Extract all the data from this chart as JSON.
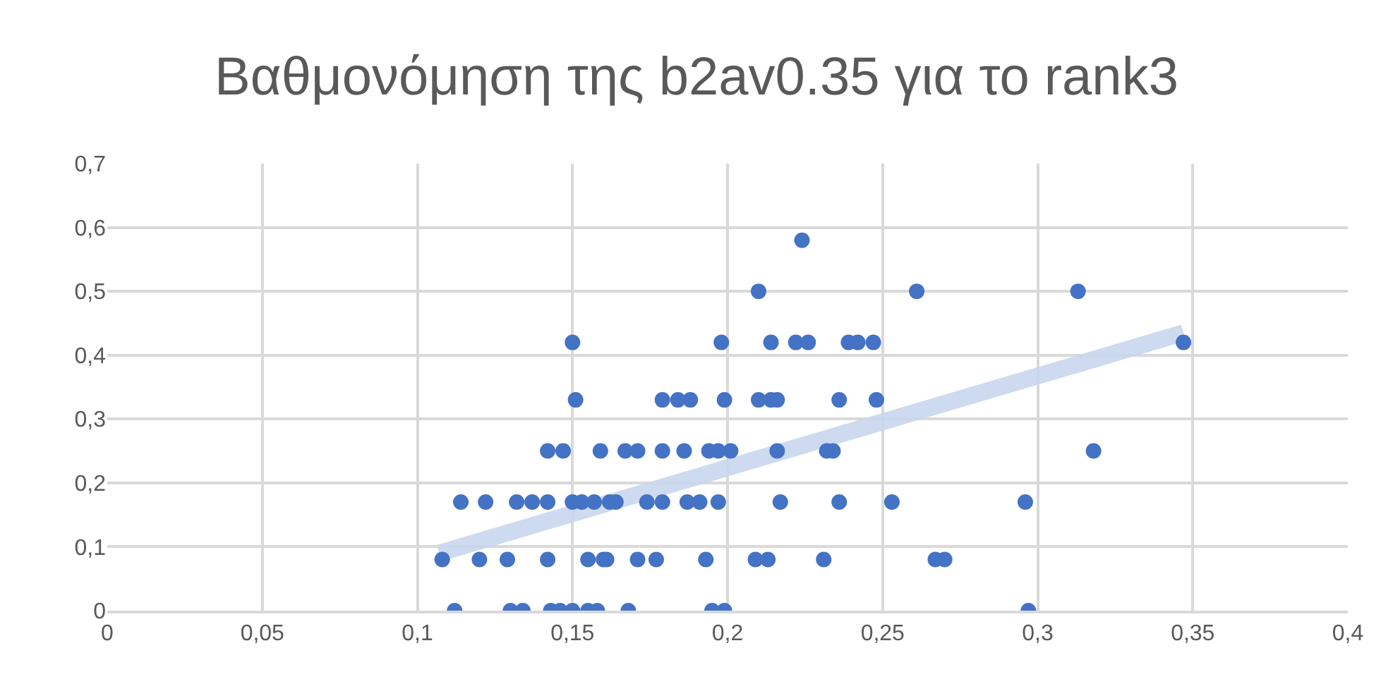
{
  "chart_data": {
    "type": "scatter",
    "title": "Βαθμονόμηση της b2av0.35 για το rank3",
    "xlim": [
      0,
      0.4
    ],
    "xticks": [
      0,
      {
        "value": 0.05,
        "label": "0,05"
      },
      {
        "value": 0.1,
        "label": "0,1"
      },
      {
        "value": 0.15,
        "label": "0,15"
      },
      {
        "value": 0.2,
        "label": "0,2"
      },
      {
        "value": 0.25,
        "label": "0,25"
      },
      {
        "value": 0.3,
        "label": "0,3"
      },
      {
        "value": 0.35,
        "label": "0,35"
      },
      {
        "value": 0.4,
        "label": "0,4"
      }
    ],
    "ylim": [
      0,
      0.7
    ],
    "yticks": [
      0,
      {
        "value": 0.1,
        "label": "0,1"
      },
      {
        "value": 0.2,
        "label": "0,2"
      },
      {
        "value": 0.3,
        "label": "0,3"
      },
      {
        "value": 0.4,
        "label": "0,4"
      },
      {
        "value": 0.5,
        "label": "0,5"
      },
      {
        "value": 0.6,
        "label": "0,6"
      },
      {
        "value": 0.7,
        "label": "0,7"
      }
    ],
    "grid": true,
    "marker": "circle",
    "series": [
      {
        "type": "line",
        "marker": "none",
        "color": "#c9d7ee",
        "x": [
          0.107,
          0.347
        ],
        "values": [
          0.09,
          0.435
        ]
      },
      {
        "color": "#4472c4",
        "x": [
          0.15,
          0.198,
          0.214,
          0.222,
          0.226,
          0.239,
          0.242,
          0.247,
          0.347,
          0.21,
          0.261,
          0.313,
          0.224,
          0.151,
          0.179,
          0.184,
          0.188,
          0.199,
          0.21,
          0.214,
          0.216,
          0.236,
          0.248,
          0.142,
          0.147,
          0.159,
          0.167,
          0.171,
          0.179,
          0.186,
          0.194,
          0.197,
          0.201,
          0.216,
          0.232,
          0.234,
          0.318,
          0.114,
          0.122,
          0.132,
          0.137,
          0.142,
          0.15,
          0.153,
          0.157,
          0.162,
          0.164,
          0.174,
          0.179,
          0.187,
          0.191,
          0.197,
          0.217,
          0.236,
          0.253,
          0.296,
          0.108,
          0.12,
          0.129,
          0.142,
          0.155,
          0.16,
          0.161,
          0.171,
          0.177,
          0.193,
          0.209,
          0.213,
          0.231,
          0.267,
          0.27,
          0.112,
          0.13,
          0.134,
          0.143,
          0.146,
          0.15,
          0.155,
          0.158,
          0.168,
          0.195,
          0.199,
          0.297
        ],
        "values": [
          0.42,
          0.42,
          0.42,
          0.42,
          0.42,
          0.42,
          0.42,
          0.42,
          0.42,
          0.5,
          0.5,
          0.5,
          0.58,
          0.33,
          0.33,
          0.33,
          0.33,
          0.33,
          0.33,
          0.33,
          0.33,
          0.33,
          0.33,
          0.25,
          0.25,
          0.25,
          0.25,
          0.25,
          0.25,
          0.25,
          0.25,
          0.25,
          0.25,
          0.25,
          0.25,
          0.25,
          0.25,
          0.17,
          0.17,
          0.17,
          0.17,
          0.17,
          0.17,
          0.17,
          0.17,
          0.17,
          0.17,
          0.17,
          0.17,
          0.17,
          0.17,
          0.17,
          0.17,
          0.17,
          0.17,
          0.17,
          0.08,
          0.08,
          0.08,
          0.08,
          0.08,
          0.08,
          0.08,
          0.08,
          0.08,
          0.08,
          0.08,
          0.08,
          0.08,
          0.08,
          0.08,
          0,
          0,
          0,
          0,
          0,
          0,
          0,
          0,
          0,
          0,
          0,
          0
        ]
      }
    ]
  }
}
